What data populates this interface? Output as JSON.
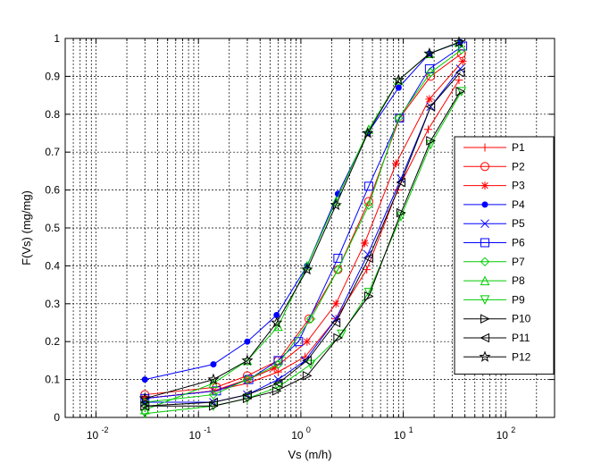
{
  "chart_data": {
    "type": "line",
    "xscale": "log",
    "xlabel": "Vs (m/h)",
    "ylabel": "F(Vs) (mg/mg)",
    "xlim": [
      0.005,
      300
    ],
    "ylim": [
      0,
      1
    ],
    "xticks": [
      0.01,
      0.1,
      1,
      10,
      100
    ],
    "xtick_labels": [
      [
        "10",
        "-2"
      ],
      [
        "10",
        "-1"
      ],
      [
        "10",
        "0"
      ],
      [
        "10",
        "1"
      ],
      [
        "10",
        "2"
      ]
    ],
    "yticks": [
      0,
      0.1,
      0.2,
      0.3,
      0.4,
      0.5,
      0.6,
      0.7,
      0.8,
      0.9,
      1
    ],
    "ytick_labels": [
      "0",
      "0.1",
      "0.2",
      "0.3",
      "0.4",
      "0.5",
      "0.6",
      "0.7",
      "0.8",
      "0.9",
      "1"
    ],
    "grid": true,
    "legend_position": "right",
    "series": [
      {
        "name": "P1",
        "color": "#ff0000",
        "marker": "plus",
        "points": [
          [
            0.03,
            0.05
          ],
          [
            0.14,
            0.07
          ],
          [
            0.3,
            0.09
          ],
          [
            0.6,
            0.12
          ],
          [
            1.1,
            0.16
          ],
          [
            2.2,
            0.26
          ],
          [
            4.4,
            0.39
          ],
          [
            8.8,
            0.6
          ],
          [
            17.5,
            0.76
          ],
          [
            35,
            0.89
          ]
        ]
      },
      {
        "name": "P2",
        "color": "#ff0000",
        "marker": "circle",
        "points": [
          [
            0.03,
            0.06
          ],
          [
            0.15,
            0.08
          ],
          [
            0.3,
            0.11
          ],
          [
            0.6,
            0.15
          ],
          [
            1.2,
            0.26
          ],
          [
            2.3,
            0.39
          ],
          [
            4.6,
            0.57
          ],
          [
            9.2,
            0.79
          ],
          [
            18.5,
            0.9
          ],
          [
            37,
            0.96
          ]
        ]
      },
      {
        "name": "P3",
        "color": "#ff0000",
        "marker": "asterisk",
        "points": [
          [
            0.03,
            0.05
          ],
          [
            0.14,
            0.07
          ],
          [
            0.3,
            0.1
          ],
          [
            0.55,
            0.13
          ],
          [
            1.15,
            0.2
          ],
          [
            2.2,
            0.3
          ],
          [
            4.2,
            0.46
          ],
          [
            8.5,
            0.67
          ],
          [
            18,
            0.84
          ],
          [
            38,
            0.94
          ]
        ]
      },
      {
        "name": "P4",
        "color": "#0000ff",
        "marker": "dot",
        "points": [
          [
            0.03,
            0.1
          ],
          [
            0.14,
            0.14
          ],
          [
            0.3,
            0.2
          ],
          [
            0.58,
            0.27
          ],
          [
            1.15,
            0.4
          ],
          [
            2.3,
            0.59
          ],
          [
            4.5,
            0.75
          ],
          [
            9,
            0.87
          ],
          [
            18,
            0.96
          ],
          [
            36,
            0.99
          ]
        ]
      },
      {
        "name": "P5",
        "color": "#0000ff",
        "marker": "x",
        "points": [
          [
            0.03,
            0.04
          ],
          [
            0.14,
            0.04
          ],
          [
            0.3,
            0.06
          ],
          [
            0.6,
            0.1
          ],
          [
            1.1,
            0.15
          ],
          [
            2.2,
            0.26
          ],
          [
            4.5,
            0.43
          ],
          [
            9.5,
            0.63
          ],
          [
            18.5,
            0.82
          ],
          [
            36,
            0.92
          ]
        ]
      },
      {
        "name": "P6",
        "color": "#0000ff",
        "marker": "square",
        "points": [
          [
            0.03,
            0.05
          ],
          [
            0.15,
            0.07
          ],
          [
            0.31,
            0.1
          ],
          [
            0.6,
            0.15
          ],
          [
            0.95,
            0.2
          ],
          [
            2.3,
            0.42
          ],
          [
            4.6,
            0.61
          ],
          [
            9.2,
            0.79
          ],
          [
            18,
            0.92
          ],
          [
            38,
            0.98
          ]
        ]
      },
      {
        "name": "P7",
        "color": "#00cc00",
        "marker": "diamond",
        "points": [
          [
            0.03,
            0.04
          ],
          [
            0.14,
            0.06
          ],
          [
            0.3,
            0.1
          ],
          [
            0.6,
            0.14
          ],
          [
            1.25,
            0.26
          ],
          [
            2.3,
            0.39
          ],
          [
            4.6,
            0.56
          ],
          [
            9,
            0.79
          ],
          [
            18.5,
            0.91
          ],
          [
            37,
            0.97
          ]
        ]
      },
      {
        "name": "P8",
        "color": "#00cc00",
        "marker": "triangle-up",
        "points": [
          [
            0.03,
            0.02
          ],
          [
            0.14,
            0.09
          ],
          [
            0.3,
            0.15
          ],
          [
            0.6,
            0.24
          ],
          [
            1.15,
            0.4
          ],
          [
            2.2,
            0.57
          ],
          [
            4.6,
            0.76
          ],
          [
            9,
            0.89
          ],
          [
            18,
            0.96
          ],
          [
            35,
            0.99
          ]
        ]
      },
      {
        "name": "P9",
        "color": "#00cc00",
        "marker": "triangle-down",
        "points": [
          [
            0.03,
            0.01
          ],
          [
            0.14,
            0.03
          ],
          [
            0.3,
            0.05
          ],
          [
            0.6,
            0.08
          ],
          [
            1.25,
            0.14
          ],
          [
            2.5,
            0.22
          ],
          [
            4.6,
            0.33
          ],
          [
            9.5,
            0.53
          ],
          [
            18.5,
            0.72
          ],
          [
            37,
            0.86
          ]
        ]
      },
      {
        "name": "P10",
        "color": "#000000",
        "marker": "triangle-right",
        "points": [
          [
            0.03,
            0.03
          ],
          [
            0.14,
            0.03
          ],
          [
            0.3,
            0.05
          ],
          [
            0.58,
            0.07
          ],
          [
            1.15,
            0.11
          ],
          [
            2.3,
            0.21
          ],
          [
            4.6,
            0.32
          ],
          [
            9.5,
            0.54
          ],
          [
            18.5,
            0.73
          ],
          [
            36,
            0.86
          ]
        ]
      },
      {
        "name": "P11",
        "color": "#000000",
        "marker": "triangle-left",
        "points": [
          [
            0.03,
            0.03
          ],
          [
            0.14,
            0.04
          ],
          [
            0.3,
            0.06
          ],
          [
            0.6,
            0.09
          ],
          [
            1.15,
            0.15
          ],
          [
            2.2,
            0.25
          ],
          [
            4.6,
            0.42
          ],
          [
            9.5,
            0.62
          ],
          [
            18.5,
            0.82
          ],
          [
            36,
            0.91
          ]
        ]
      },
      {
        "name": "P12",
        "color": "#000000",
        "marker": "star",
        "points": [
          [
            0.03,
            0.05
          ],
          [
            0.14,
            0.1
          ],
          [
            0.3,
            0.15
          ],
          [
            0.58,
            0.25
          ],
          [
            1.15,
            0.39
          ],
          [
            2.2,
            0.56
          ],
          [
            4.5,
            0.75
          ],
          [
            9,
            0.89
          ],
          [
            18,
            0.96
          ],
          [
            35,
            0.99
          ]
        ]
      }
    ]
  }
}
